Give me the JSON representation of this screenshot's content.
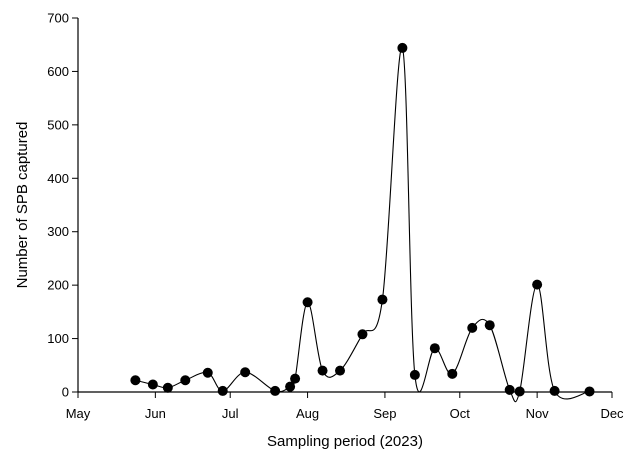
{
  "chart_data": {
    "type": "line",
    "title": "",
    "xlabel": "Sampling period (2023)",
    "ylabel": "Number of SPB captured",
    "xlim": [
      "2023-05-01",
      "2023-12-01"
    ],
    "ylim": [
      0,
      700
    ],
    "x_ticks": [
      "2023-05-01",
      "2023-06-01",
      "2023-07-01",
      "2023-08-01",
      "2023-09-01",
      "2023-10-01",
      "2023-11-01",
      "2023-12-01"
    ],
    "x_tick_labels": [
      "May",
      "Jun",
      "Jul",
      "Aug",
      "Sep",
      "Oct",
      "Nov",
      "Dec"
    ],
    "y_ticks": [
      0,
      100,
      200,
      300,
      400,
      500,
      600,
      700
    ],
    "y_tick_labels": [
      "0",
      "100",
      "200",
      "300",
      "400",
      "500",
      "600",
      "700"
    ],
    "grid": false,
    "legend": "none",
    "line_style": "smoothed curve with filled circle markers",
    "color": "#000000",
    "series": [
      {
        "x": [
          "2023-05-24",
          "2023-05-31",
          "2023-06-06",
          "2023-06-13",
          "2023-06-22",
          "2023-06-28",
          "2023-07-07",
          "2023-07-19",
          "2023-07-25",
          "2023-07-27",
          "2023-08-01",
          "2023-08-07",
          "2023-08-14",
          "2023-08-23",
          "2023-08-31",
          "2023-09-08",
          "2023-09-13",
          "2023-09-21",
          "2023-09-28",
          "2023-10-06",
          "2023-10-13",
          "2023-10-21",
          "2023-10-25",
          "2023-11-01",
          "2023-11-08",
          "2023-11-22"
        ],
        "y": [
          22,
          14,
          8,
          22,
          36,
          2,
          37,
          2,
          10,
          25,
          168,
          40,
          40,
          108,
          173,
          644,
          32,
          82,
          34,
          120,
          125,
          4,
          1,
          201,
          2,
          1
        ]
      }
    ]
  }
}
